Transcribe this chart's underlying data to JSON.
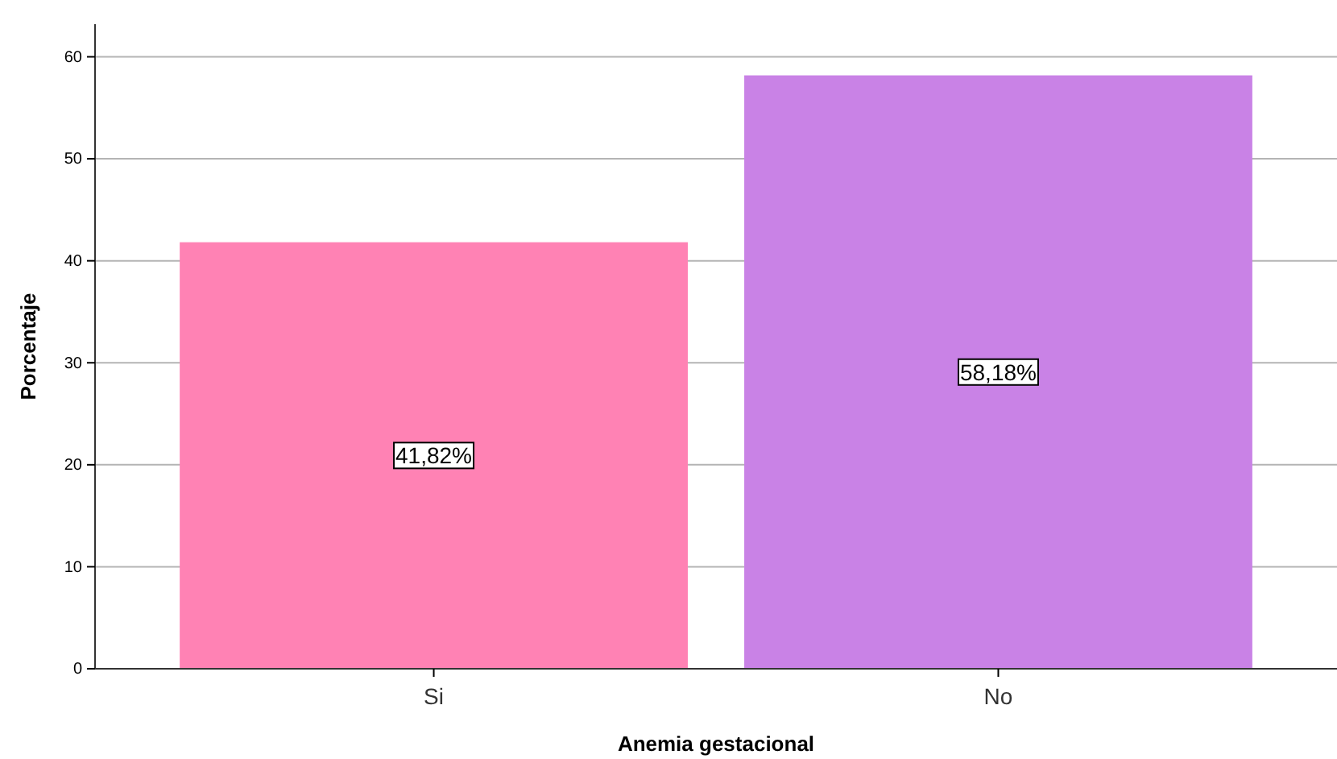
{
  "chart_data": {
    "type": "bar",
    "xlabel": "Anemia gestacional",
    "ylabel": "Porcentaje",
    "categories": [
      "Si",
      "No"
    ],
    "values": [
      41.82,
      58.18
    ],
    "colors": [
      "#ff82b4",
      "#c982e6"
    ],
    "value_labels": [
      "41,82%",
      "58,18%"
    ],
    "ylim": [
      0,
      63.2
    ],
    "yticks": [
      0,
      10,
      20,
      30,
      40,
      50,
      60
    ],
    "grid": "y"
  }
}
